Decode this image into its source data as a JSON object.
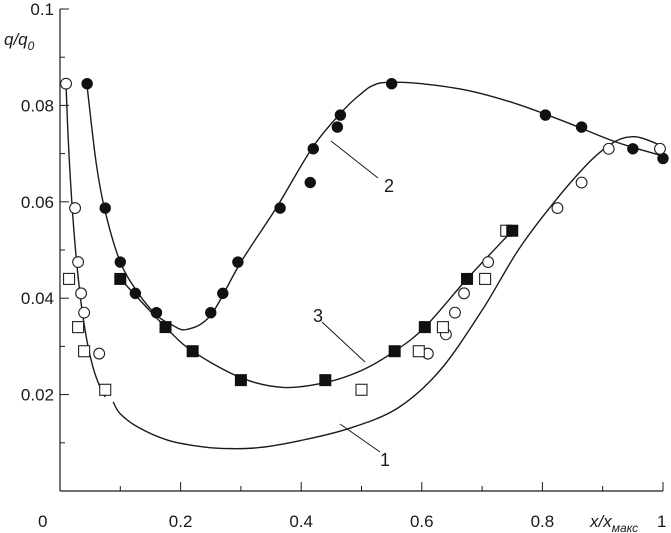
{
  "chart_data": {
    "type": "scatter",
    "title": "",
    "xlabel": "x/x",
    "xlabel_sub": "макс",
    "ylabel": "q/q",
    "ylabel_sub": "0",
    "xlim": [
      0,
      1
    ],
    "ylim": [
      0,
      0.1
    ],
    "xticks": [
      "0",
      "0.2",
      "0.4",
      "0.6",
      "0.8",
      "1"
    ],
    "yticks": [
      "0.02",
      "0.04",
      "0.06",
      "0.08",
      "0.1"
    ],
    "grid": false,
    "legend": "none",
    "curve_labels": [
      "1",
      "2",
      "3"
    ],
    "series": [
      {
        "marker": "filled-circle",
        "points": [
          [
            0.045,
            0.0845
          ],
          [
            0.075,
            0.0587
          ],
          [
            0.1,
            0.0475
          ],
          [
            0.125,
            0.041
          ],
          [
            0.16,
            0.037
          ],
          [
            0.25,
            0.037
          ],
          [
            0.27,
            0.041
          ],
          [
            0.295,
            0.0475
          ],
          [
            0.365,
            0.0587
          ],
          [
            0.415,
            0.064
          ],
          [
            0.42,
            0.071
          ],
          [
            0.46,
            0.0755
          ],
          [
            0.465,
            0.078
          ],
          [
            0.55,
            0.0845
          ],
          [
            0.805,
            0.078
          ],
          [
            0.865,
            0.0755
          ],
          [
            0.95,
            0.071
          ],
          [
            1.0,
            0.069
          ]
        ]
      },
      {
        "marker": "open-circle",
        "points": [
          [
            0.01,
            0.0845
          ],
          [
            0.025,
            0.0587
          ],
          [
            0.03,
            0.0475
          ],
          [
            0.035,
            0.041
          ],
          [
            0.04,
            0.037
          ],
          [
            0.065,
            0.0285
          ],
          [
            0.61,
            0.0285
          ],
          [
            0.64,
            0.0325
          ],
          [
            0.655,
            0.037
          ],
          [
            0.67,
            0.041
          ],
          [
            0.71,
            0.0475
          ],
          [
            0.825,
            0.0587
          ],
          [
            0.865,
            0.064
          ],
          [
            0.91,
            0.071
          ],
          [
            0.995,
            0.071
          ]
        ]
      },
      {
        "marker": "open-square",
        "points": [
          [
            0.015,
            0.044
          ],
          [
            0.03,
            0.034
          ],
          [
            0.04,
            0.029
          ],
          [
            0.075,
            0.021
          ],
          [
            0.5,
            0.021
          ],
          [
            0.595,
            0.029
          ],
          [
            0.635,
            0.034
          ],
          [
            0.705,
            0.044
          ],
          [
            0.74,
            0.054
          ]
        ]
      },
      {
        "marker": "filled-square",
        "points": [
          [
            0.1,
            0.044
          ],
          [
            0.175,
            0.034
          ],
          [
            0.22,
            0.029
          ],
          [
            0.3,
            0.023
          ],
          [
            0.44,
            0.023
          ],
          [
            0.555,
            0.029
          ],
          [
            0.605,
            0.034
          ],
          [
            0.675,
            0.044
          ],
          [
            0.75,
            0.054
          ]
        ]
      }
    ],
    "curves": [
      {
        "label": "1",
        "x": [
          0.088,
          0.1,
          0.13,
          0.18,
          0.24,
          0.28,
          0.33,
          0.4,
          0.48,
          0.56,
          0.63,
          0.7,
          0.76,
          0.82,
          0.88,
          0.92,
          0.95,
          0.97,
          1.0
        ],
        "y": [
          0.0185,
          0.016,
          0.0132,
          0.0105,
          0.0091,
          0.0088,
          0.009,
          0.0105,
          0.013,
          0.0172,
          0.025,
          0.0375,
          0.05,
          0.06,
          0.0685,
          0.0725,
          0.0735,
          0.073,
          0.0715
        ]
      },
      {
        "label": "2",
        "x": [
          0.045,
          0.06,
          0.075,
          0.1,
          0.13,
          0.16,
          0.185,
          0.21,
          0.25,
          0.3,
          0.36,
          0.42,
          0.47,
          0.5,
          0.52,
          0.545,
          0.6,
          0.68,
          0.76,
          0.84,
          0.92,
          1.0
        ],
        "y": [
          0.084,
          0.068,
          0.058,
          0.0475,
          0.041,
          0.0365,
          0.0345,
          0.0335,
          0.0365,
          0.0475,
          0.059,
          0.0715,
          0.079,
          0.0825,
          0.0842,
          0.0848,
          0.0845,
          0.083,
          0.0802,
          0.0765,
          0.0725,
          0.0695
        ]
      },
      {
        "label": "3",
        "x": [
          0.1,
          0.175,
          0.22,
          0.3,
          0.37,
          0.44,
          0.5,
          0.555,
          0.605,
          0.675,
          0.75
        ],
        "y": [
          0.044,
          0.034,
          0.029,
          0.0235,
          0.0215,
          0.0225,
          0.025,
          0.029,
          0.034,
          0.044,
          0.054
        ]
      },
      {
        "label": "",
        "x": [
          0.01,
          0.013,
          0.018,
          0.025,
          0.035,
          0.045,
          0.055,
          0.065,
          0.075
        ],
        "y": [
          0.0845,
          0.075,
          0.063,
          0.051,
          0.039,
          0.031,
          0.0255,
          0.022,
          0.0195
        ]
      }
    ]
  }
}
